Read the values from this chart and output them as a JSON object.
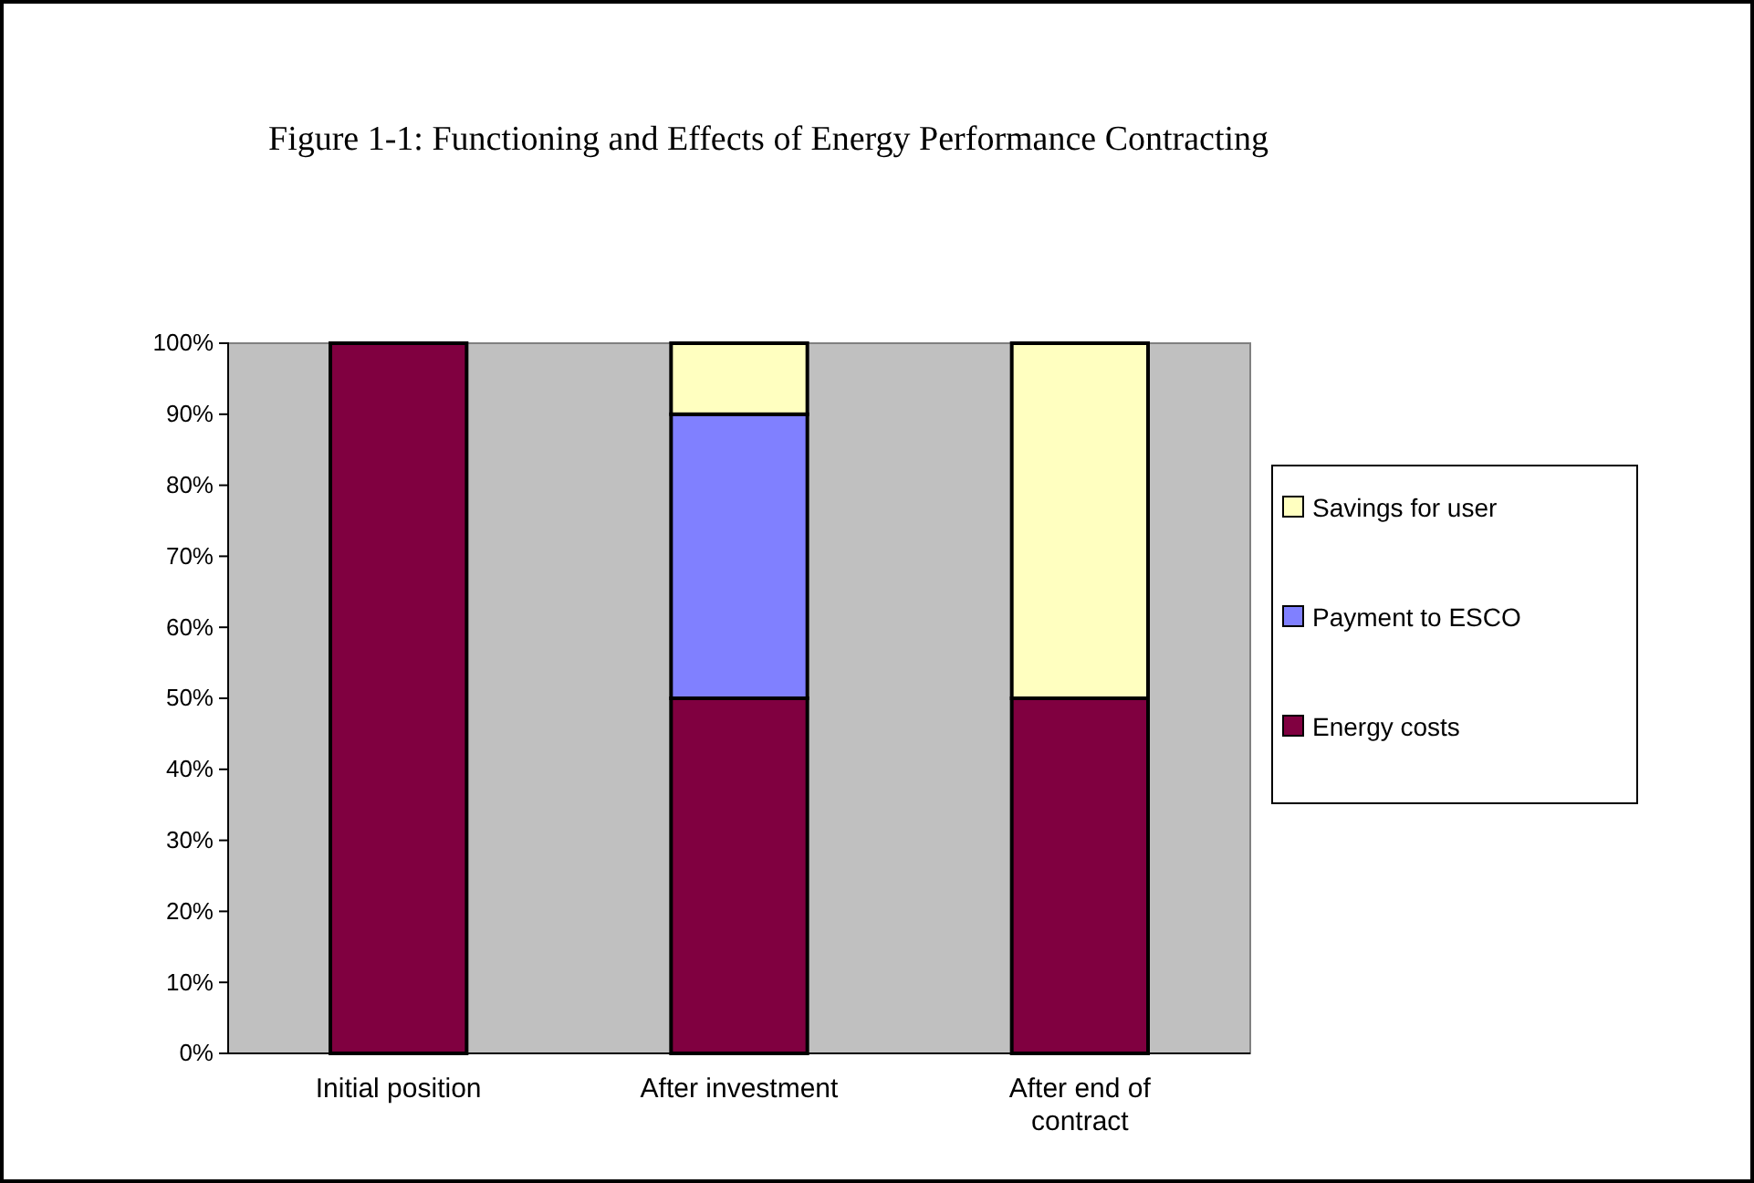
{
  "chart_data": {
    "type": "bar",
    "title": "Figure 1-1: Functioning and Effects of Energy Performance Contracting",
    "categories": [
      "Initial position",
      "After investment",
      "After end of\ncontract"
    ],
    "stacked": true,
    "legend": "right",
    "grid": false,
    "ylim": [
      0,
      100
    ],
    "yticks": [
      {
        "value": 0,
        "label": "0%"
      },
      {
        "value": 10,
        "label": "10%"
      },
      {
        "value": 20,
        "label": "20%"
      },
      {
        "value": 30,
        "label": "30%"
      },
      {
        "value": 40,
        "label": "40%"
      },
      {
        "value": 50,
        "label": "50%"
      },
      {
        "value": 60,
        "label": "60%"
      },
      {
        "value": 70,
        "label": "70%"
      },
      {
        "value": 80,
        "label": "80%"
      },
      {
        "value": 90,
        "label": "90%"
      },
      {
        "value": 100,
        "label": "100%"
      }
    ],
    "series": [
      {
        "name": "Energy costs",
        "color": "#800040",
        "values": [
          100,
          50,
          50
        ]
      },
      {
        "name": "Payment to ESCO",
        "color": "#8080ff",
        "values": [
          0,
          40,
          0
        ]
      },
      {
        "name": "Savings for user",
        "color": "#ffffc0",
        "values": [
          0,
          10,
          50
        ]
      }
    ]
  }
}
